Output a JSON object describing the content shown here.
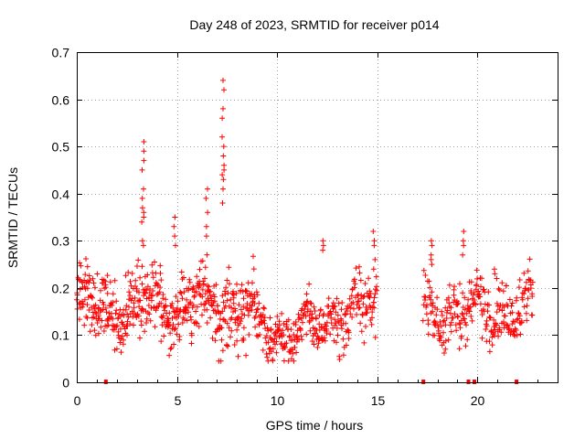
{
  "chart_data": {
    "type": "scatter",
    "title": "Day 248 of 2023, SRMTID for receiver p014",
    "xlabel": "GPS time / hours",
    "ylabel": "SRMTID / TECUs",
    "xlim": [
      0,
      24
    ],
    "ylim": [
      0,
      0.7
    ],
    "xticks": [
      0,
      5,
      10,
      15,
      20
    ],
    "yticks": [
      0,
      0.1,
      0.2,
      0.3,
      0.4,
      0.5,
      0.6,
      0.7
    ],
    "grid": true,
    "marker": "+",
    "marker_color": "#ff0000",
    "zero_markers_x": [
      1.45,
      17.3,
      19.55,
      19.85,
      21.95
    ],
    "segments": [
      {
        "x0": 0.0,
        "x1": 8.9,
        "bias": 0.16,
        "spread": 0.06,
        "density": 60
      },
      {
        "x0": 8.9,
        "x1": 12.5,
        "bias": 0.11,
        "spread": 0.04,
        "density": 55
      },
      {
        "x0": 12.5,
        "x1": 15.0,
        "bias": 0.15,
        "spread": 0.05,
        "density": 50
      },
      {
        "x0": 17.3,
        "x1": 22.8,
        "bias": 0.15,
        "spread": 0.05,
        "density": 50
      }
    ],
    "spikes": [
      {
        "x": 3.3,
        "values": [
          0.51,
          0.49,
          0.47,
          0.45,
          0.39,
          0.37,
          0.36,
          0.35,
          0.34,
          0.41,
          0.29,
          0.3
        ]
      },
      {
        "x": 7.3,
        "values": [
          0.64,
          0.62,
          0.58,
          0.56,
          0.52,
          0.5,
          0.48,
          0.46,
          0.45,
          0.44,
          0.43,
          0.41,
          0.38
        ]
      },
      {
        "x": 6.5,
        "values": [
          0.41,
          0.39,
          0.36,
          0.33,
          0.31
        ]
      },
      {
        "x": 4.9,
        "values": [
          0.35,
          0.33,
          0.31,
          0.29
        ]
      },
      {
        "x": 12.3,
        "values": [
          0.3,
          0.29,
          0.28
        ]
      },
      {
        "x": 14.85,
        "values": [
          0.32,
          0.3,
          0.29,
          0.26,
          0.24
        ]
      },
      {
        "x": 17.7,
        "values": [
          0.3,
          0.29,
          0.27,
          0.26,
          0.25
        ]
      },
      {
        "x": 19.3,
        "values": [
          0.32,
          0.3,
          0.29,
          0.27
        ]
      },
      {
        "x": 20.9,
        "values": [
          0.24,
          0.23,
          0.22
        ]
      }
    ]
  }
}
